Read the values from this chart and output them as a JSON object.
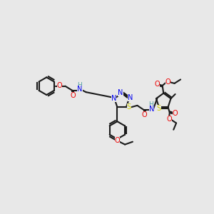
{
  "bg_color": "#e8e8e8",
  "bond_color": "#1a1a1a",
  "bond_lw": 1.5,
  "atom_colors": {
    "N": "#0000ee",
    "O": "#ee0000",
    "S": "#cccc00",
    "C_label": "#000000",
    "H": "#4fa0a0"
  },
  "font_size": 7.0
}
